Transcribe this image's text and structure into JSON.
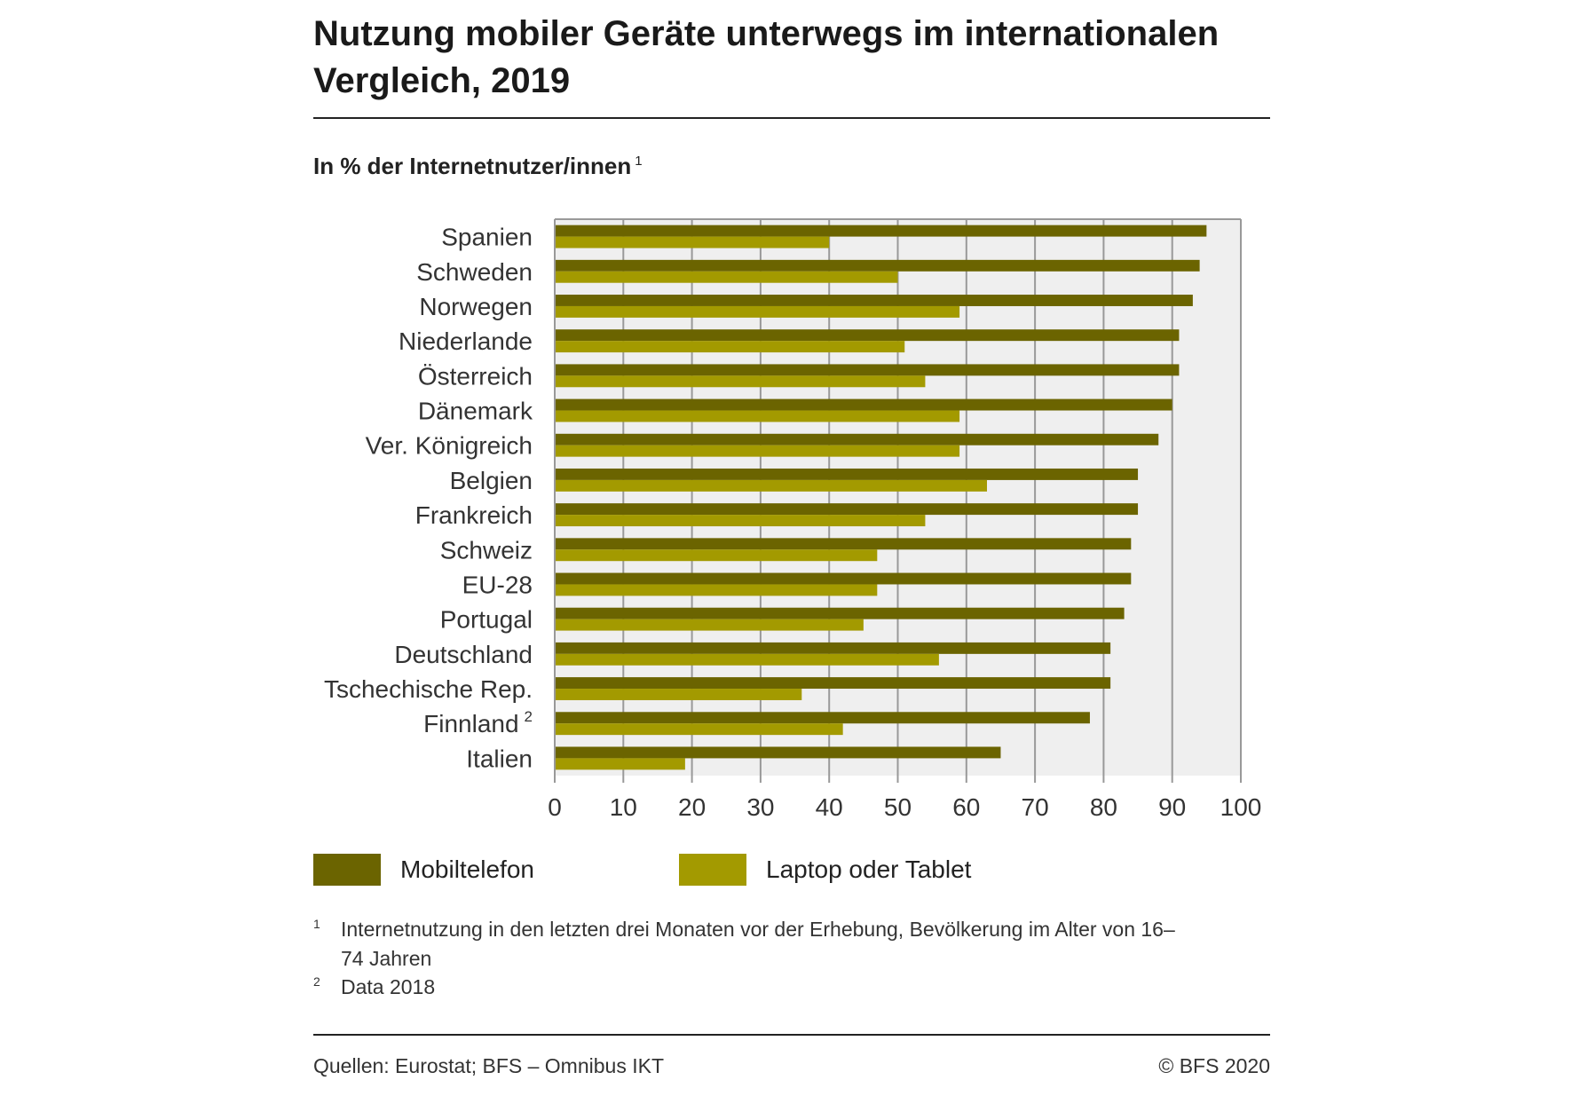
{
  "title": "Nutzung mobiler Geräte unterwegs im internationalen Vergleich, 2019",
  "subtitle": "In % der Internetnutzer/innen",
  "subtitle_note": "1",
  "chart_data": {
    "type": "bar",
    "orientation": "horizontal",
    "categories": [
      "Spanien",
      "Schweden",
      "Norwegen",
      "Niederlande",
      "Österreich",
      "Dänemark",
      "Ver. Königreich",
      "Belgien",
      "Frankreich",
      "Schweiz",
      "EU-28",
      "Portugal",
      "Deutschland",
      "Tschechische Rep.",
      "Finnland",
      "Italien"
    ],
    "category_notes": [
      "",
      "",
      "",
      "",
      "",
      "",
      "",
      "",
      "",
      "",
      "",
      "",
      "",
      "",
      "2",
      ""
    ],
    "series": [
      {
        "name": "Mobiltelefon",
        "color": "#6b6400",
        "values": [
          95,
          94,
          93,
          91,
          91,
          90,
          88,
          85,
          85,
          84,
          84,
          83,
          81,
          81,
          78,
          65
        ]
      },
      {
        "name": "Laptop oder Tablet",
        "color": "#a39a00",
        "values": [
          40,
          50,
          59,
          51,
          54,
          59,
          59,
          63,
          54,
          47,
          47,
          45,
          56,
          36,
          42,
          19
        ]
      }
    ],
    "xlim": [
      0,
      100
    ],
    "xticks": [
      "0",
      "10",
      "20",
      "30",
      "40",
      "50",
      "60",
      "70",
      "80",
      "90",
      "100"
    ],
    "grid": true,
    "plot_background": "#efefef",
    "legend_position": "bottom"
  },
  "footnotes": [
    {
      "mark": "1",
      "text": "Internetnutzung in den letzten drei Monaten vor der Erhebung, Bevölkerung im Alter von 16–74 Jahren"
    },
    {
      "mark": "2",
      "text": "Data 2018"
    }
  ],
  "source": "Quellen: Eurostat; BFS – Omnibus IKT",
  "copyright": "© BFS 2020"
}
